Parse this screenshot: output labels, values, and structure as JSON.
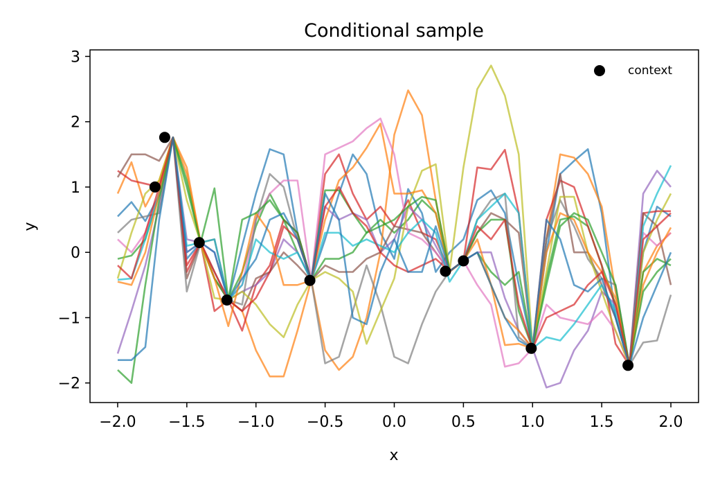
{
  "chart_data": {
    "type": "line",
    "title": "Conditional sample",
    "xlabel": "x",
    "ylabel": "y",
    "xlim": [
      -2.2,
      2.2
    ],
    "ylim": [
      -2.3,
      3.1
    ],
    "xticks": [
      -2.0,
      -1.5,
      -1.0,
      -0.5,
      0.0,
      0.5,
      1.0,
      1.5,
      2.0
    ],
    "xtick_labels": [
      "−2.0",
      "−1.5",
      "−1.0",
      "−0.5",
      "0.0",
      "0.5",
      "1.0",
      "1.5",
      "2.0"
    ],
    "yticks": [
      -2,
      -1,
      0,
      1,
      2,
      3
    ],
    "ytick_labels": [
      "−2",
      "−1",
      "0",
      "1",
      "2",
      "3"
    ],
    "legend": {
      "position": "top-right",
      "entries": [
        "context"
      ]
    },
    "context": {
      "name": "context",
      "color": "#000000",
      "points": [
        [
          -1.73,
          1.0
        ],
        [
          -1.66,
          1.76
        ],
        [
          -1.41,
          0.15
        ],
        [
          -1.21,
          -0.73
        ],
        [
          -0.61,
          -0.43
        ],
        [
          0.37,
          -0.29
        ],
        [
          0.5,
          -0.13
        ],
        [
          0.99,
          -1.47
        ],
        [
          1.69,
          -1.73
        ]
      ]
    },
    "x": [
      -2.0,
      -1.9,
      -1.8,
      -1.7,
      -1.6,
      -1.5,
      -1.4,
      -1.3,
      -1.2,
      -1.1,
      -1.0,
      -0.9,
      -0.8,
      -0.7,
      -0.6,
      -0.5,
      -0.4,
      -0.3,
      -0.2,
      -0.1,
      0.0,
      0.1,
      0.2,
      0.3,
      0.4,
      0.5,
      0.6,
      0.7,
      0.8,
      0.9,
      1.0,
      1.1,
      1.2,
      1.3,
      1.4,
      1.5,
      1.6,
      1.7,
      1.8,
      1.9,
      2.0
    ],
    "series": [
      {
        "color": "#1f77b4",
        "values": [
          0.55,
          0.77,
          0.48,
          0.87,
          1.76,
          -0.1,
          0.15,
          -0.4,
          -0.73,
          0.1,
          0.9,
          1.58,
          1.5,
          0.3,
          -0.43,
          0.2,
          0.9,
          1.5,
          1.2,
          0.3,
          -0.1,
          0.97,
          0.6,
          -0.3,
          0.0,
          0.2,
          0.8,
          0.95,
          0.6,
          -0.5,
          -1.47,
          0.0,
          1.2,
          1.4,
          1.58,
          0.6,
          -1.0,
          -1.73,
          0.0,
          0.7,
          0.55
        ]
      },
      {
        "color": "#ff7f0e",
        "values": [
          0.9,
          1.38,
          0.7,
          1.1,
          1.76,
          1.2,
          0.15,
          -0.4,
          -0.73,
          -0.9,
          -1.5,
          -1.9,
          -1.9,
          -1.2,
          -0.43,
          -1.5,
          -1.8,
          -1.6,
          -1.0,
          0.0,
          1.8,
          2.48,
          2.1,
          0.8,
          -0.3,
          -0.13,
          0.0,
          -0.5,
          -1.42,
          -1.4,
          -1.47,
          0.2,
          1.5,
          1.45,
          1.2,
          0.7,
          -0.6,
          -1.73,
          -0.3,
          0.1,
          0.3
        ]
      },
      {
        "color": "#2ca02c",
        "values": [
          -0.1,
          -0.05,
          0.2,
          0.9,
          1.76,
          1.1,
          0.15,
          -0.4,
          -0.73,
          -0.3,
          0.4,
          0.9,
          0.5,
          0.0,
          -0.43,
          -0.1,
          -0.1,
          0.0,
          0.3,
          0.5,
          0.3,
          0.5,
          0.8,
          0.6,
          -0.29,
          -0.13,
          0.0,
          -0.3,
          -0.5,
          -0.3,
          -1.47,
          -0.4,
          0.5,
          0.55,
          0.4,
          -0.2,
          -0.8,
          -1.73,
          -0.3,
          -0.1,
          -0.2
        ]
      },
      {
        "color": "#d62728",
        "values": [
          1.25,
          1.1,
          1.05,
          1.0,
          1.76,
          -0.3,
          0.15,
          -0.9,
          -0.73,
          -1.2,
          -0.5,
          -0.2,
          0.5,
          0.3,
          -0.43,
          1.2,
          1.5,
          0.9,
          0.5,
          0.7,
          0.4,
          0.8,
          0.3,
          0.2,
          -0.29,
          -0.13,
          1.3,
          1.27,
          1.57,
          0.6,
          -1.47,
          0.5,
          1.1,
          1.0,
          0.4,
          -0.2,
          -1.4,
          -1.73,
          0.6,
          0.63,
          0.63
        ]
      },
      {
        "color": "#9467bd",
        "values": [
          -1.55,
          -0.9,
          -0.2,
          0.7,
          1.76,
          0.2,
          0.15,
          0.0,
          -0.73,
          -0.6,
          -0.5,
          -0.3,
          0.2,
          0.0,
          -0.43,
          0.7,
          0.5,
          0.6,
          0.5,
          0.0,
          0.2,
          0.7,
          0.5,
          0.1,
          -0.29,
          -0.13,
          0.0,
          0.0,
          -0.7,
          -1.2,
          -1.47,
          -2.07,
          -2.0,
          -1.5,
          -1.2,
          -0.6,
          -0.8,
          -1.73,
          0.9,
          1.25,
          1.0
        ]
      },
      {
        "color": "#8c564b",
        "values": [
          1.15,
          1.5,
          1.5,
          1.4,
          1.76,
          -0.4,
          0.15,
          0.2,
          -0.73,
          -0.9,
          -0.4,
          -0.3,
          0.0,
          -0.2,
          -0.43,
          -0.2,
          -0.3,
          -0.3,
          -0.1,
          0.0,
          0.4,
          0.35,
          0.3,
          0.0,
          -0.29,
          -0.13,
          0.3,
          0.6,
          0.5,
          0.3,
          -1.47,
          0.2,
          1.2,
          0.0,
          0.0,
          -0.5,
          -1.0,
          -1.73,
          0.6,
          0.4,
          -0.5
        ]
      },
      {
        "color": "#e377c2",
        "values": [
          0.2,
          0.0,
          0.3,
          0.9,
          1.76,
          0.0,
          0.15,
          -0.3,
          -0.73,
          -0.5,
          0.5,
          0.9,
          1.1,
          1.1,
          -0.43,
          1.5,
          1.6,
          1.7,
          1.9,
          2.05,
          1.5,
          0.3,
          0.2,
          0.0,
          -0.29,
          -0.13,
          -0.5,
          -0.8,
          -1.75,
          -1.7,
          -1.47,
          -0.8,
          -1.0,
          -1.05,
          -1.1,
          -0.9,
          -1.2,
          -1.73,
          0.3,
          0.1,
          0.3
        ]
      },
      {
        "color": "#7f7f7f",
        "values": [
          0.3,
          0.5,
          0.55,
          0.6,
          1.76,
          -0.6,
          0.15,
          -0.3,
          -0.73,
          -0.8,
          0.5,
          1.2,
          1.0,
          0.2,
          -0.43,
          -1.7,
          -1.6,
          -0.9,
          -0.2,
          -0.8,
          -1.6,
          -1.7,
          -1.1,
          -0.6,
          -0.29,
          -0.13,
          0.5,
          0.8,
          0.9,
          -1.3,
          -1.47,
          0.2,
          0.8,
          0.4,
          -0.1,
          -0.4,
          -0.5,
          -1.73,
          -1.38,
          -1.35,
          -0.65
        ]
      },
      {
        "color": "#bcbd22",
        "values": [
          -0.4,
          0.3,
          0.9,
          1.1,
          1.76,
          0.8,
          0.15,
          -0.7,
          -0.73,
          -0.6,
          -0.8,
          -1.1,
          -1.3,
          -0.8,
          -0.43,
          -0.3,
          -0.4,
          -0.6,
          -1.4,
          -0.9,
          -0.4,
          0.7,
          1.25,
          1.35,
          -0.29,
          1.3,
          2.5,
          2.86,
          2.4,
          1.5,
          -1.47,
          -0.3,
          0.85,
          0.85,
          0.0,
          -0.6,
          -1.2,
          -1.73,
          0.0,
          0.5,
          0.9
        ]
      },
      {
        "color": "#17becf",
        "values": [
          -0.42,
          -0.4,
          0.2,
          0.9,
          1.76,
          0.1,
          0.15,
          0.2,
          -0.73,
          -0.5,
          0.2,
          0.0,
          -0.1,
          0.0,
          -0.43,
          0.3,
          0.3,
          0.1,
          0.2,
          0.1,
          0.0,
          0.3,
          0.5,
          0.3,
          -0.45,
          -0.13,
          0.5,
          0.7,
          0.9,
          0.6,
          -1.47,
          -1.3,
          -1.35,
          -1.1,
          -0.8,
          -0.5,
          -0.9,
          -1.73,
          0.4,
          0.9,
          1.33
        ]
      },
      {
        "color": "#ff7f0e",
        "values": [
          -0.45,
          -0.5,
          0.0,
          0.9,
          1.76,
          1.3,
          0.15,
          -0.4,
          -1.13,
          -0.3,
          0.6,
          0.3,
          -0.5,
          -0.5,
          -0.43,
          0.5,
          1.1,
          1.3,
          1.6,
          1.97,
          0.9,
          0.9,
          0.95,
          0.6,
          -0.29,
          -0.13,
          0.2,
          -0.5,
          -1.0,
          -1.2,
          -1.47,
          0.0,
          0.6,
          0.5,
          0.0,
          -0.3,
          -0.7,
          -1.73,
          -0.5,
          0.0,
          0.38
        ]
      },
      {
        "color": "#2ca02c",
        "values": [
          -1.8,
          -2.0,
          -0.5,
          0.8,
          1.76,
          1.0,
          0.15,
          0.98,
          -0.73,
          0.5,
          0.6,
          0.8,
          0.5,
          0.3,
          -0.43,
          0.95,
          0.95,
          0.6,
          0.3,
          0.4,
          0.5,
          0.7,
          0.85,
          0.8,
          -0.29,
          -0.13,
          0.3,
          0.5,
          0.5,
          -0.9,
          -1.47,
          -0.5,
          0.4,
          0.6,
          0.5,
          0.0,
          -0.5,
          -1.73,
          -0.6,
          -0.3,
          -0.1
        ]
      },
      {
        "color": "#d62728",
        "values": [
          -0.2,
          -0.4,
          0.3,
          1.0,
          1.76,
          -0.2,
          0.15,
          -0.3,
          -0.73,
          -0.9,
          -0.7,
          -0.3,
          0.4,
          0.2,
          -0.43,
          0.7,
          1.0,
          0.6,
          0.4,
          0.0,
          -0.2,
          -0.3,
          -0.2,
          -0.1,
          -0.29,
          -0.13,
          0.4,
          0.2,
          0.5,
          -0.8,
          -1.47,
          -1.0,
          -0.9,
          -0.8,
          -0.5,
          -0.3,
          -0.8,
          -1.73,
          0.2,
          0.4,
          0.6
        ]
      },
      {
        "color": "#1f77b4",
        "values": [
          -1.65,
          -1.65,
          -1.45,
          0.5,
          1.76,
          0.0,
          0.15,
          0.0,
          -0.73,
          -0.4,
          -0.1,
          0.5,
          0.6,
          0.2,
          -0.43,
          0.9,
          0.5,
          -1.0,
          -1.1,
          -0.3,
          0.2,
          -0.3,
          -0.3,
          0.4,
          -0.29,
          -0.13,
          0.0,
          -0.5,
          -1.0,
          -1.35,
          -1.47,
          0.5,
          0.2,
          -0.5,
          -0.6,
          -0.4,
          -1.0,
          -1.73,
          -1.0,
          -0.5,
          0.0
        ]
      }
    ]
  }
}
